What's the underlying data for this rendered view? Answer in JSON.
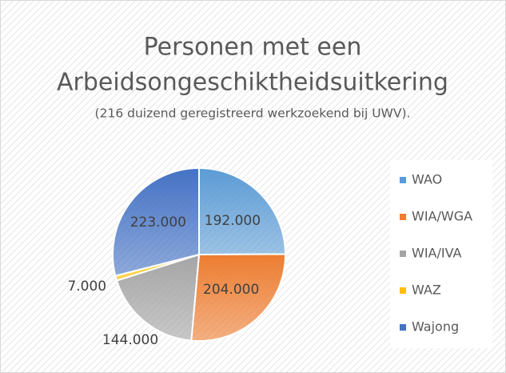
{
  "chart_data": {
    "type": "pie",
    "title": [
      "Personen met een",
      "Arbeidsongeschiktheidsuitkering"
    ],
    "subtitle": "(216 duizend geregistreerd werkzoekend bij UWV).",
    "categories": [
      "WAO",
      "WIA/WGA",
      "WIA/IVA",
      "WAZ",
      "Wajong"
    ],
    "values": [
      192000,
      204000,
      144000,
      7000,
      223000
    ],
    "value_labels": [
      "192.000",
      "204.000",
      "144.000",
      "7.000",
      "223.000"
    ],
    "colors": [
      "#5b9bd5",
      "#ed7d31",
      "#a5a5a5",
      "#ffc000",
      "#4472c4"
    ],
    "legend": "right"
  }
}
